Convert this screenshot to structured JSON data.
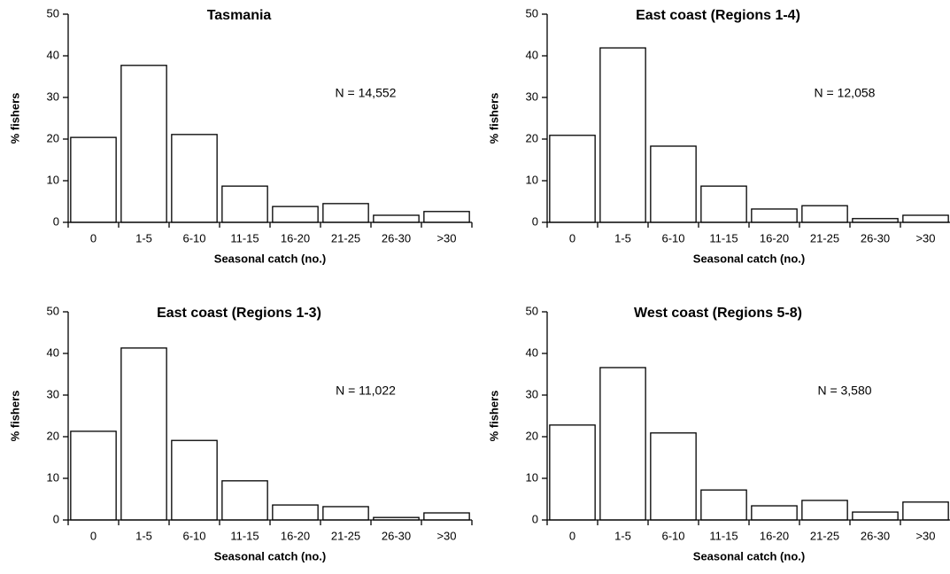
{
  "chart_data": [
    {
      "type": "bar",
      "title": "Tasmania",
      "annotation": "N = 14,552",
      "xlabel": "Seasonal catch (no.)",
      "ylabel": "% fishers",
      "categories": [
        "0",
        "1-5",
        "6-10",
        "11-15",
        "16-20",
        "21-25",
        "26-30",
        ">30"
      ],
      "values": [
        20.4,
        37.7,
        21.1,
        8.7,
        3.8,
        4.5,
        1.7,
        2.6
      ],
      "color": "#ffffff",
      "edgecolor": "#000000",
      "ylim": [
        0,
        50
      ],
      "yticks": [
        0,
        10,
        20,
        30,
        40,
        50
      ]
    },
    {
      "type": "bar",
      "title": "East coast (Regions 1-4)",
      "annotation": "N = 12,058",
      "xlabel": "Seasonal catch (no.)",
      "ylabel": "% fishers",
      "categories": [
        "0",
        "1-5",
        "6-10",
        "11-15",
        "16-20",
        "21-25",
        "26-30",
        ">30"
      ],
      "values": [
        20.9,
        41.9,
        18.3,
        8.7,
        3.2,
        4.0,
        0.9,
        1.7
      ],
      "color": "#ffffff",
      "edgecolor": "#000000",
      "ylim": [
        0,
        50
      ],
      "yticks": [
        0,
        10,
        20,
        30,
        40,
        50
      ]
    },
    {
      "type": "bar",
      "title": "East coast (Regions 1-3)",
      "annotation": "N = 11,022",
      "xlabel": "Seasonal catch (no.)",
      "ylabel": "% fishers",
      "categories": [
        "0",
        "1-5",
        "6-10",
        "11-15",
        "16-20",
        "21-25",
        "26-30",
        ">30"
      ],
      "values": [
        21.3,
        41.3,
        19.1,
        9.4,
        3.6,
        3.2,
        0.6,
        1.7
      ],
      "color": "#ffffff",
      "edgecolor": "#000000",
      "ylim": [
        0,
        50
      ],
      "yticks": [
        0,
        10,
        20,
        30,
        40,
        50
      ]
    },
    {
      "type": "bar",
      "title": "West coast (Regions 5-8)",
      "annotation": "N = 3,580",
      "xlabel": "Seasonal catch (no.)",
      "ylabel": "% fishers",
      "categories": [
        "0",
        "1-5",
        "6-10",
        "11-15",
        "16-20",
        "21-25",
        "26-30",
        ">30"
      ],
      "values": [
        22.8,
        36.6,
        20.9,
        7.2,
        3.4,
        4.7,
        1.9,
        4.3
      ],
      "color": "#ffffff",
      "edgecolor": "#000000",
      "ylim": [
        0,
        50
      ],
      "yticks": [
        0,
        10,
        20,
        30,
        40,
        50
      ]
    }
  ]
}
